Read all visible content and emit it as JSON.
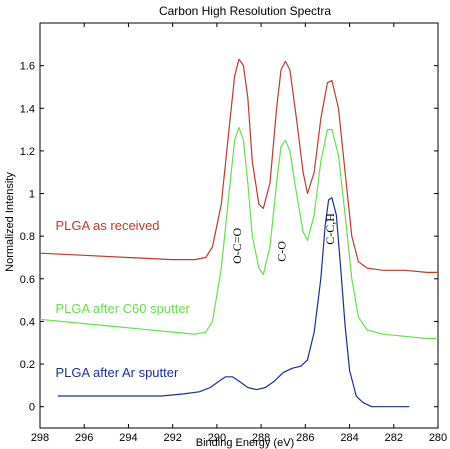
{
  "chart_data": {
    "type": "line",
    "title": "Carbon High Resolution Spectra",
    "xlabel": "Binding Energy (eV)",
    "ylabel": "Normalized Intensity",
    "xlim": [
      298,
      280
    ],
    "ylim": [
      -0.1,
      1.8
    ],
    "x_reversed": true,
    "xticks": [
      298,
      296,
      294,
      292,
      290,
      288,
      286,
      284,
      282,
      280
    ],
    "yticks": [
      0,
      0.2,
      0.4,
      0.6,
      0.8,
      1,
      1.2,
      1.4,
      1.6
    ],
    "ytick_labels": [
      "0",
      "0.2",
      "0.4",
      "0.6",
      "0.8",
      "1",
      "1.2",
      "1.4",
      "1.6"
    ],
    "grid": false,
    "legend": "inline series labels on left",
    "series": [
      {
        "name": "PLGA as received",
        "color": "#c0392b",
        "points": [
          [
            298,
            0.72
          ],
          [
            296,
            0.71
          ],
          [
            294,
            0.7
          ],
          [
            292,
            0.69
          ],
          [
            291,
            0.69
          ],
          [
            290.5,
            0.7
          ],
          [
            290.2,
            0.75
          ],
          [
            289.8,
            0.95
          ],
          [
            289.5,
            1.25
          ],
          [
            289.2,
            1.55
          ],
          [
            289.0,
            1.63
          ],
          [
            288.8,
            1.6
          ],
          [
            288.6,
            1.45
          ],
          [
            288.4,
            1.15
          ],
          [
            288.1,
            0.95
          ],
          [
            287.9,
            0.93
          ],
          [
            287.6,
            1.05
          ],
          [
            287.3,
            1.4
          ],
          [
            287.1,
            1.58
          ],
          [
            286.9,
            1.62
          ],
          [
            286.7,
            1.58
          ],
          [
            286.4,
            1.35
          ],
          [
            286.1,
            1.1
          ],
          [
            285.9,
            1.0
          ],
          [
            285.6,
            1.1
          ],
          [
            285.3,
            1.35
          ],
          [
            285.0,
            1.52
          ],
          [
            284.8,
            1.53
          ],
          [
            284.5,
            1.4
          ],
          [
            284.2,
            1.1
          ],
          [
            283.9,
            0.8
          ],
          [
            283.6,
            0.68
          ],
          [
            283.2,
            0.65
          ],
          [
            282.5,
            0.64
          ],
          [
            281.5,
            0.64
          ],
          [
            280.5,
            0.63
          ],
          [
            280,
            0.63
          ]
        ]
      },
      {
        "name": "PLGA after C60 sputter",
        "color": "#66e04a",
        "points": [
          [
            298,
            0.41
          ],
          [
            296,
            0.39
          ],
          [
            294,
            0.37
          ],
          [
            292,
            0.35
          ],
          [
            291,
            0.34
          ],
          [
            290.5,
            0.35
          ],
          [
            290.2,
            0.4
          ],
          [
            289.8,
            0.65
          ],
          [
            289.5,
            0.95
          ],
          [
            289.2,
            1.25
          ],
          [
            289.0,
            1.31
          ],
          [
            288.8,
            1.25
          ],
          [
            288.6,
            1.05
          ],
          [
            288.4,
            0.8
          ],
          [
            288.1,
            0.65
          ],
          [
            287.9,
            0.62
          ],
          [
            287.6,
            0.75
          ],
          [
            287.3,
            1.05
          ],
          [
            287.1,
            1.22
          ],
          [
            286.9,
            1.25
          ],
          [
            286.7,
            1.2
          ],
          [
            286.4,
            1.0
          ],
          [
            286.1,
            0.82
          ],
          [
            285.9,
            0.78
          ],
          [
            285.6,
            0.9
          ],
          [
            285.3,
            1.15
          ],
          [
            285.0,
            1.3
          ],
          [
            284.8,
            1.3
          ],
          [
            284.5,
            1.18
          ],
          [
            284.2,
            0.9
          ],
          [
            283.9,
            0.6
          ],
          [
            283.6,
            0.42
          ],
          [
            283.2,
            0.36
          ],
          [
            282.5,
            0.34
          ],
          [
            281.5,
            0.33
          ],
          [
            280.5,
            0.32
          ],
          [
            280,
            0.32
          ]
        ]
      },
      {
        "name": "PLGA after Ar sputter",
        "color": "#1a2f9e",
        "points": [
          [
            297.2,
            0.05
          ],
          [
            296.5,
            0.05
          ],
          [
            295.5,
            0.05
          ],
          [
            294.5,
            0.05
          ],
          [
            293.5,
            0.05
          ],
          [
            292.5,
            0.05
          ],
          [
            291.5,
            0.06
          ],
          [
            290.8,
            0.07
          ],
          [
            290.3,
            0.09
          ],
          [
            289.9,
            0.12
          ],
          [
            289.6,
            0.14
          ],
          [
            289.3,
            0.14
          ],
          [
            289.0,
            0.12
          ],
          [
            288.6,
            0.09
          ],
          [
            288.2,
            0.08
          ],
          [
            287.8,
            0.09
          ],
          [
            287.4,
            0.12
          ],
          [
            287.0,
            0.16
          ],
          [
            286.6,
            0.18
          ],
          [
            286.2,
            0.19
          ],
          [
            285.9,
            0.22
          ],
          [
            285.6,
            0.35
          ],
          [
            285.3,
            0.6
          ],
          [
            285.1,
            0.85
          ],
          [
            284.95,
            0.97
          ],
          [
            284.8,
            0.98
          ],
          [
            284.6,
            0.9
          ],
          [
            284.4,
            0.65
          ],
          [
            284.2,
            0.38
          ],
          [
            284.0,
            0.17
          ],
          [
            283.7,
            0.05
          ],
          [
            283.4,
            0.02
          ],
          [
            283.0,
            0.0
          ],
          [
            282.5,
            0.0
          ],
          [
            282.0,
            0.0
          ],
          [
            281.3,
            0.0
          ]
        ]
      }
    ],
    "series_labels": [
      {
        "text": "PLGA as received",
        "at": [
          297.3,
          0.83
        ]
      },
      {
        "text": "PLGA after C60 sputter",
        "at": [
          297.3,
          0.44
        ]
      },
      {
        "text": "PLGA after Ar sputter",
        "at": [
          297.3,
          0.14
        ]
      }
    ],
    "annotations": [
      {
        "text": "O-C=O",
        "x": 288.9,
        "y": 0.67,
        "rotation": -90
      },
      {
        "text": "C-O",
        "x": 286.9,
        "y": 0.68,
        "rotation": -90
      },
      {
        "text": "C-C,H",
        "x": 284.7,
        "y": 0.76,
        "rotation": -90
      }
    ]
  }
}
